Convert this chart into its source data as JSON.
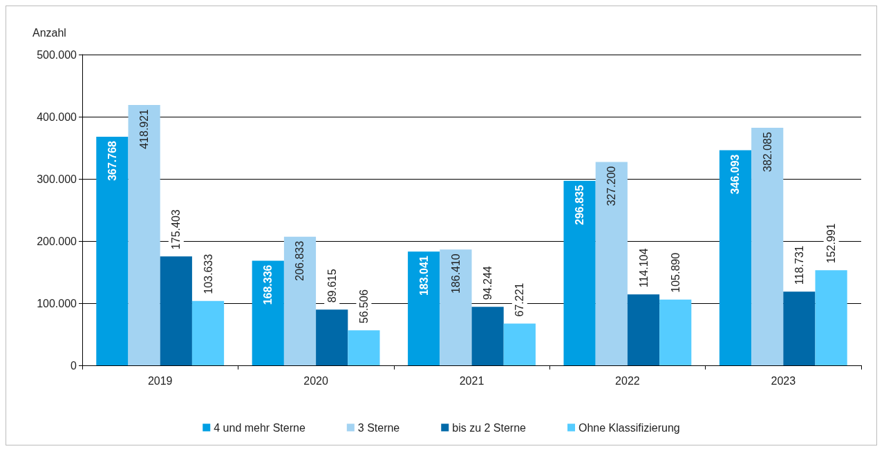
{
  "chart_data": {
    "type": "bar",
    "ylabel": "Anzahl",
    "categories": [
      "2019",
      "2020",
      "2021",
      "2022",
      "2023"
    ],
    "series": [
      {
        "name": "4 und mehr Sterne",
        "color": "#009fe3",
        "values": [
          367768,
          168336,
          183041,
          296835,
          346093
        ],
        "value_labels": [
          "367.768",
          "168.336",
          "183.041",
          "296.835",
          "346.093"
        ]
      },
      {
        "name": "3 Sterne",
        "color": "#a3d3f2",
        "values": [
          418921,
          206833,
          186410,
          327200,
          382085
        ],
        "value_labels": [
          "418.921",
          "206.833",
          "186.410",
          "327.200",
          "382.085"
        ]
      },
      {
        "name": "bis zu 2 Sterne",
        "color": "#0069a8",
        "values": [
          175403,
          89615,
          94244,
          114104,
          118731
        ],
        "value_labels": [
          "175.403",
          "89.615",
          "94.244",
          "114.104",
          "118.731"
        ]
      },
      {
        "name": "Ohne Klassifizierung",
        "color": "#55ccff",
        "values": [
          103633,
          56506,
          67221,
          105890,
          152991
        ],
        "value_labels": [
          "103.633",
          "56.506",
          "67.221",
          "105.890",
          "152.991"
        ]
      }
    ],
    "ylim": [
      0,
      500000
    ],
    "yticks": [
      {
        "value": 0,
        "label": "0"
      },
      {
        "value": 100000,
        "label": "100.000"
      },
      {
        "value": 200000,
        "label": "200.000"
      },
      {
        "value": 300000,
        "label": "300.000"
      },
      {
        "value": 400000,
        "label": "400.000"
      },
      {
        "value": 500000,
        "label": "500.000"
      }
    ],
    "grid": "y",
    "legend": "bottom"
  }
}
